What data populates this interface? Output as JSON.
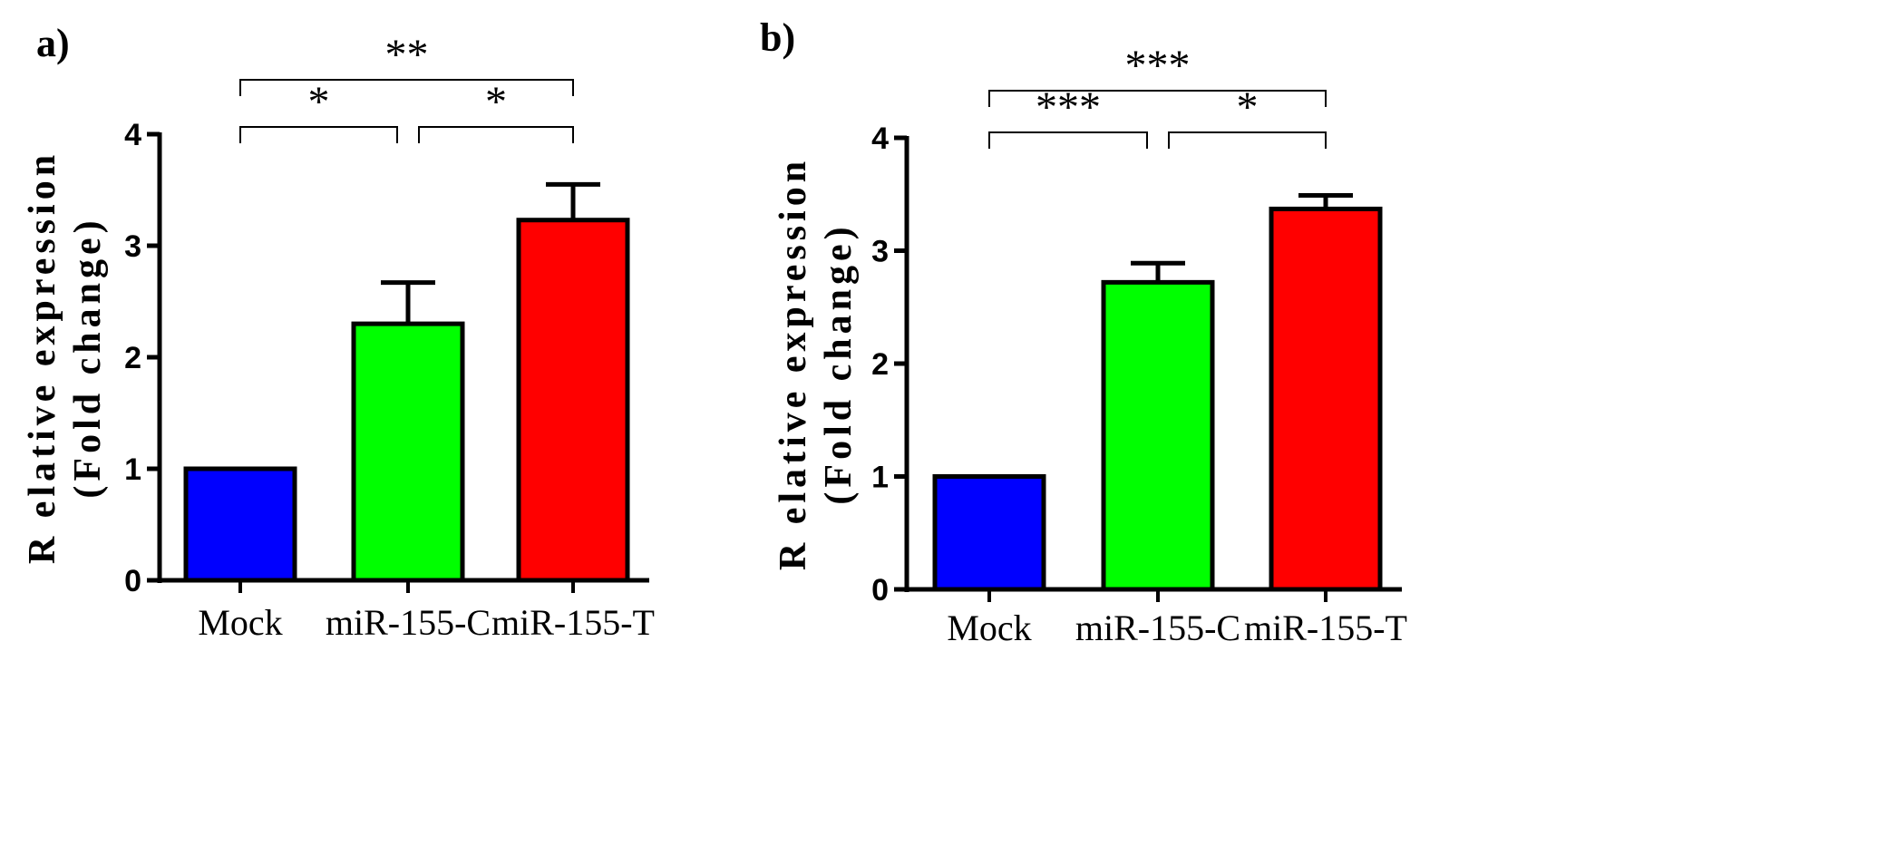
{
  "chart_data": [
    {
      "type": "bar",
      "panel_label": "a)",
      "categories": [
        "Mock",
        "miR-155-C",
        "miR-155-T"
      ],
      "values": [
        1.0,
        2.3,
        3.23
      ],
      "errors": [
        0.0,
        0.37,
        0.32
      ],
      "colors": [
        "#0000ff",
        "#00ff00",
        "#ff0000"
      ],
      "ylabel_line1": "R elative expression",
      "ylabel_line2": "(Fold change)",
      "ylim": [
        0,
        4
      ],
      "yticks": [
        "0",
        "1",
        "2",
        "3",
        "4"
      ],
      "significance": [
        {
          "from": 0,
          "to": 1,
          "label": "*",
          "level": 0
        },
        {
          "from": 1,
          "to": 2,
          "label": "*",
          "level": 0
        },
        {
          "from": 0,
          "to": 2,
          "label": "**",
          "level": 1
        }
      ]
    },
    {
      "type": "bar",
      "panel_label": "b)",
      "categories": [
        "Mock",
        "miR-155-C",
        "miR-155-T"
      ],
      "values": [
        1.0,
        2.72,
        3.37
      ],
      "errors": [
        0.0,
        0.17,
        0.12
      ],
      "colors": [
        "#0000ff",
        "#00ff00",
        "#ff0000"
      ],
      "ylabel_line1": "R elative expression",
      "ylabel_line2": "(Fold change)",
      "ylim": [
        0,
        4
      ],
      "yticks": [
        "0",
        "1",
        "2",
        "3",
        "4"
      ],
      "significance": [
        {
          "from": 0,
          "to": 1,
          "label": "***",
          "level": 0
        },
        {
          "from": 1,
          "to": 2,
          "label": "*",
          "level": 0
        },
        {
          "from": 0,
          "to": 2,
          "label": "***",
          "level": 1
        }
      ]
    }
  ]
}
